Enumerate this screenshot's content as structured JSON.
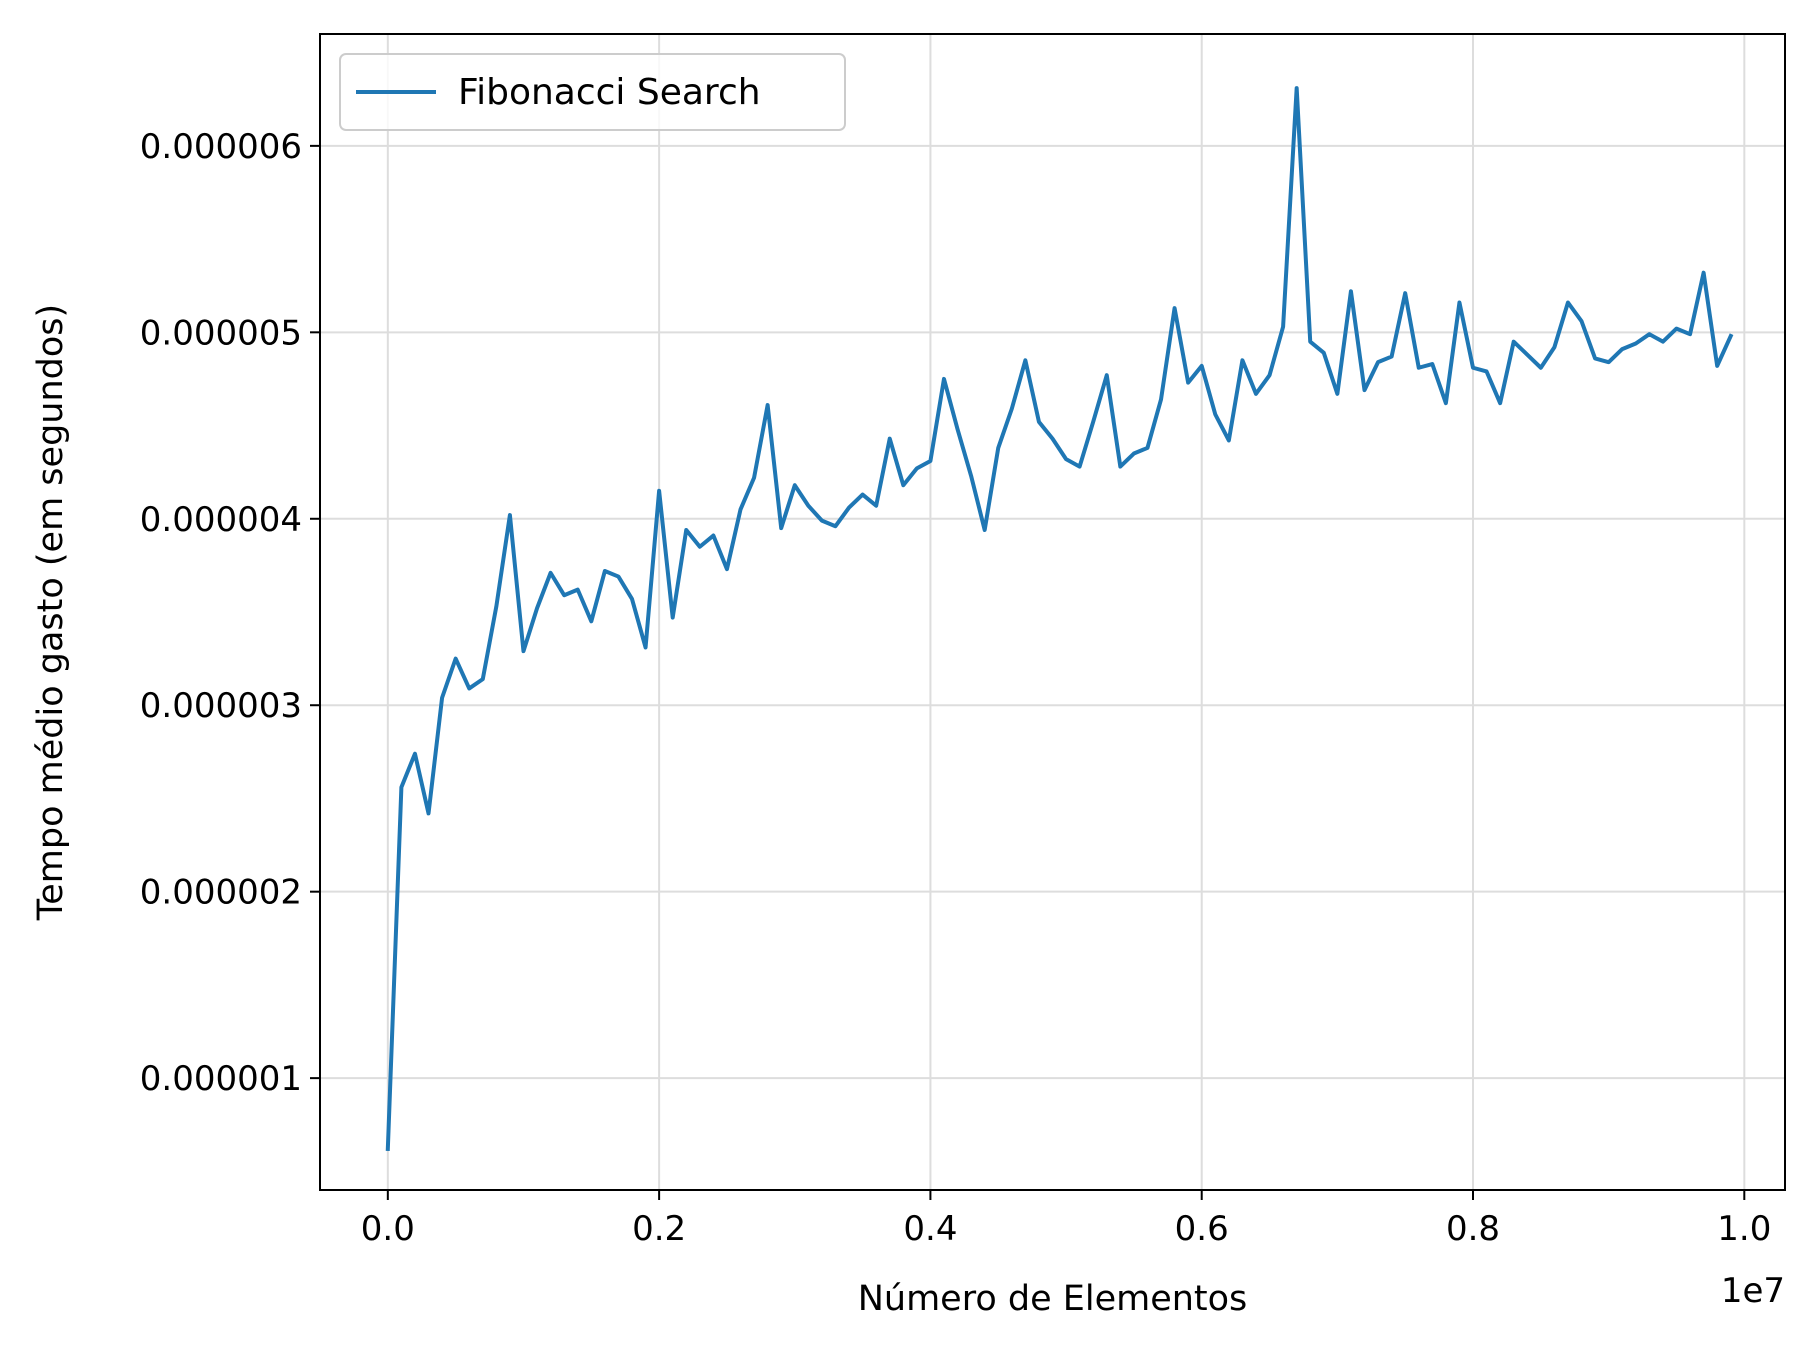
{
  "chart_data": {
    "type": "line",
    "xlabel": "Número de Elementos",
    "ylabel": "Tempo médio gasto (em segundos)",
    "x_offset_text": "1e7",
    "xlim": [
      -0.05,
      1.03
    ],
    "ylim": [
      4e-07,
      6.6e-06
    ],
    "x_ticks": [
      0.0,
      0.2,
      0.4,
      0.6,
      0.8,
      1.0
    ],
    "x_tick_labels": [
      "0.0",
      "0.2",
      "0.4",
      "0.6",
      "0.8",
      "1.0"
    ],
    "y_ticks": [
      1e-06,
      2e-06,
      3e-06,
      4e-06,
      5e-06,
      6e-06
    ],
    "y_tick_labels": [
      "0.000001",
      "0.000002",
      "0.000003",
      "0.000004",
      "0.000005",
      "0.000006"
    ],
    "grid": true,
    "legend_position": "top-left",
    "series": [
      {
        "name": "Fibonacci Search",
        "color": "#1f77b4",
        "x": [
          0.0,
          0.01,
          0.02,
          0.03,
          0.04,
          0.05,
          0.06,
          0.07,
          0.08,
          0.09,
          0.1,
          0.11,
          0.12,
          0.13,
          0.14,
          0.15,
          0.16,
          0.17,
          0.18,
          0.19,
          0.2,
          0.21,
          0.22,
          0.23,
          0.24,
          0.25,
          0.26,
          0.27,
          0.28,
          0.29,
          0.3,
          0.31,
          0.32,
          0.33,
          0.34,
          0.35,
          0.36,
          0.37,
          0.38,
          0.39,
          0.4,
          0.41,
          0.42,
          0.43,
          0.44,
          0.45,
          0.46,
          0.47,
          0.48,
          0.49,
          0.5,
          0.51,
          0.52,
          0.53,
          0.54,
          0.55,
          0.56,
          0.57,
          0.58,
          0.59,
          0.6,
          0.61,
          0.62,
          0.63,
          0.64,
          0.65,
          0.66,
          0.67,
          0.68,
          0.69,
          0.7,
          0.71,
          0.72,
          0.73,
          0.74,
          0.75,
          0.76,
          0.77,
          0.78,
          0.79,
          0.8,
          0.81,
          0.82,
          0.83,
          0.84,
          0.85,
          0.86,
          0.87,
          0.88,
          0.89,
          0.9,
          0.91,
          0.92,
          0.93,
          0.94,
          0.95,
          0.96,
          0.97,
          0.98,
          0.99
        ],
        "y": [
          6.2e-07,
          2.56e-06,
          2.74e-06,
          2.42e-06,
          3.04e-06,
          3.25e-06,
          3.09e-06,
          3.14e-06,
          3.53e-06,
          4.02e-06,
          3.29e-06,
          3.52e-06,
          3.71e-06,
          3.59e-06,
          3.62e-06,
          3.45e-06,
          3.72e-06,
          3.69e-06,
          3.57e-06,
          3.31e-06,
          4.15e-06,
          3.47e-06,
          3.94e-06,
          3.85e-06,
          3.91e-06,
          3.73e-06,
          4.05e-06,
          4.22e-06,
          4.61e-06,
          3.95e-06,
          4.18e-06,
          4.07e-06,
          3.99e-06,
          3.96e-06,
          4.06e-06,
          4.13e-06,
          4.07e-06,
          4.43e-06,
          4.18e-06,
          4.27e-06,
          4.31e-06,
          4.75e-06,
          4.48e-06,
          4.23e-06,
          3.94e-06,
          4.38e-06,
          4.59e-06,
          4.85e-06,
          4.52e-06,
          4.43e-06,
          4.32e-06,
          4.28e-06,
          4.52e-06,
          4.77e-06,
          4.28e-06,
          4.35e-06,
          4.38e-06,
          4.64e-06,
          5.13e-06,
          4.73e-06,
          4.82e-06,
          4.56e-06,
          4.42e-06,
          4.85e-06,
          4.67e-06,
          4.77e-06,
          5.03e-06,
          6.31e-06,
          4.95e-06,
          4.89e-06,
          4.67e-06,
          5.22e-06,
          4.69e-06,
          4.84e-06,
          4.87e-06,
          5.21e-06,
          4.81e-06,
          4.83e-06,
          4.62e-06,
          5.16e-06,
          4.81e-06,
          4.79e-06,
          4.62e-06,
          4.95e-06,
          4.88e-06,
          4.81e-06,
          4.92e-06,
          5.16e-06,
          5.06e-06,
          4.86e-06,
          4.84e-06,
          4.91e-06,
          4.94e-06,
          4.99e-06,
          4.95e-06,
          5.02e-06,
          4.99e-06,
          5.32e-06,
          4.82e-06,
          4.98e-06
        ]
      }
    ]
  }
}
